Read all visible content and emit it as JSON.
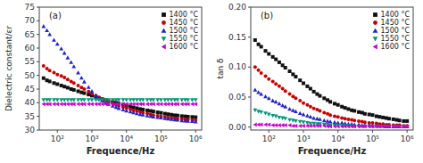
{
  "chart_data": [
    {
      "type": "scatter",
      "xlabel": "Frequence/Hz",
      "ylabel": "Dielectric constant/εr",
      "annotations": [
        "(a)"
      ],
      "log": "x",
      "grid": false,
      "legend": "upper right",
      "xlim": [
        30,
        1500000
      ],
      "xticks": [
        {
          "value": 100,
          "label": "10²"
        },
        {
          "value": 1000,
          "label": "10³"
        },
        {
          "value": 10000,
          "label": "10⁴"
        },
        {
          "value": 100000,
          "label": "10⁵"
        },
        {
          "value": 1000000,
          "label": "10⁶"
        }
      ],
      "ylim": [
        30,
        75
      ],
      "yticks": [
        30,
        35,
        40,
        45,
        50,
        55,
        60,
        65,
        70,
        75
      ],
      "x": [
        40,
        50,
        60,
        80,
        100,
        130,
        160,
        200,
        250,
        300,
        400,
        500,
        600,
        800,
        1000,
        1300,
        1600,
        2000,
        2500,
        3000,
        4000,
        5000,
        6000,
        8000,
        10000,
        13000,
        16000,
        20000,
        25000,
        30000,
        40000,
        50000,
        60000,
        80000,
        100000,
        130000,
        160000,
        200000,
        250000,
        300000,
        400000,
        500000,
        600000,
        800000,
        1000000
      ],
      "series": [
        {
          "name": "1400 °C",
          "color": "#111111",
          "marker": "square",
          "values": [
            49.0,
            48.2,
            47.8,
            47.2,
            46.8,
            46.3,
            45.9,
            45.5,
            45.0,
            44.7,
            44.2,
            43.8,
            43.5,
            43.0,
            42.6,
            42.1,
            41.7,
            41.3,
            41.0,
            40.7,
            40.3,
            40.0,
            39.7,
            39.3,
            39.0,
            38.6,
            38.3,
            38.0,
            37.7,
            37.5,
            37.2,
            37.0,
            36.8,
            36.5,
            36.3,
            36.0,
            35.8,
            35.6,
            35.4,
            35.3,
            35.1,
            35.0,
            34.9,
            34.8,
            34.7
          ]
        },
        {
          "name": "1450 °C",
          "color": "#cc0000",
          "marker": "circle",
          "values": [
            53.5,
            52.5,
            51.8,
            51.0,
            50.3,
            49.8,
            49.2,
            48.5,
            47.8,
            47.2,
            46.3,
            45.6,
            45.0,
            44.1,
            43.4,
            42.6,
            42.0,
            41.4,
            40.8,
            40.4,
            39.8,
            39.3,
            38.9,
            38.4,
            38.0,
            37.6,
            37.2,
            36.9,
            36.6,
            36.3,
            36.0,
            35.7,
            35.5,
            35.2,
            35.0,
            34.8,
            34.6,
            34.4,
            34.3,
            34.1,
            34.0,
            33.9,
            33.8,
            33.7,
            33.6
          ]
        },
        {
          "name": "1500 °C",
          "color": "#2222cc",
          "marker": "triangle-up",
          "values": [
            68.0,
            66.5,
            65.0,
            63.0,
            61.5,
            59.8,
            58.2,
            56.5,
            54.8,
            53.3,
            51.0,
            49.1,
            47.7,
            45.7,
            44.2,
            42.6,
            41.6,
            40.7,
            40.0,
            39.5,
            38.9,
            38.4,
            38.0,
            37.5,
            37.1,
            36.7,
            36.4,
            36.1,
            35.8,
            35.6,
            35.3,
            35.1,
            34.9,
            34.7,
            34.5,
            34.3,
            34.1,
            34.0,
            33.8,
            33.7,
            33.5,
            33.4,
            33.3,
            33.2,
            33.1
          ]
        },
        {
          "name": "1550 °C",
          "color": "#009977",
          "marker": "triangle-down",
          "values": [
            41.0,
            41.0,
            41.0,
            41.0,
            41.0,
            41.0,
            41.0,
            41.0,
            41.0,
            41.0,
            41.0,
            41.0,
            41.0,
            41.0,
            41.0,
            41.0,
            41.0,
            41.0,
            41.0,
            41.0,
            41.0,
            41.0,
            41.0,
            41.0,
            41.0,
            41.0,
            41.0,
            41.0,
            41.0,
            41.0,
            41.0,
            41.0,
            41.0,
            41.0,
            41.0,
            41.0,
            41.0,
            41.0,
            41.0,
            41.0,
            41.0,
            41.0,
            41.0,
            41.0,
            41.0
          ]
        },
        {
          "name": "1600 °C",
          "color": "#cc00cc",
          "marker": "triangle-left",
          "values": [
            39.5,
            39.5,
            39.5,
            39.5,
            39.5,
            39.5,
            39.5,
            39.5,
            39.5,
            39.5,
            39.5,
            39.5,
            39.5,
            39.5,
            39.5,
            39.5,
            39.5,
            39.5,
            39.5,
            39.5,
            39.5,
            39.5,
            39.5,
            39.5,
            39.5,
            39.5,
            39.5,
            39.5,
            39.5,
            39.5,
            39.5,
            39.5,
            39.5,
            39.5,
            39.5,
            39.5,
            39.5,
            39.5,
            39.5,
            39.5,
            39.5,
            39.5,
            39.5,
            39.5,
            39.5
          ]
        }
      ]
    },
    {
      "type": "scatter",
      "xlabel": "Frequence/Hz",
      "ylabel": "tan δ",
      "annotations": [
        "(b)"
      ],
      "log": "x",
      "grid": false,
      "legend": "upper right",
      "xlim": [
        30,
        1500000
      ],
      "xticks": [
        {
          "value": 100,
          "label": "10²"
        },
        {
          "value": 1000,
          "label": "10³"
        },
        {
          "value": 10000,
          "label": "10⁴"
        },
        {
          "value": 100000,
          "label": "10⁵"
        },
        {
          "value": 1000000,
          "label": "10⁶"
        }
      ],
      "ylim": [
        -0.005,
        0.2
      ],
      "yticks": [
        {
          "value": 0,
          "label": "0.00"
        },
        0.05,
        {
          "value": 0.1,
          "label": "0.10"
        },
        0.15,
        {
          "value": 0.2,
          "label": "0.20"
        }
      ],
      "x": [
        40,
        50,
        60,
        80,
        100,
        130,
        160,
        200,
        250,
        300,
        400,
        500,
        600,
        800,
        1000,
        1300,
        1600,
        2000,
        2500,
        3000,
        4000,
        5000,
        6000,
        8000,
        10000,
        13000,
        16000,
        20000,
        25000,
        30000,
        40000,
        50000,
        60000,
        80000,
        100000,
        130000,
        160000,
        200000,
        250000,
        300000,
        400000,
        500000,
        600000,
        800000,
        1000000
      ],
      "series": [
        {
          "name": "1400 °C",
          "color": "#111111",
          "marker": "square",
          "values": [
            0.145,
            0.138,
            0.134,
            0.127,
            0.122,
            0.117,
            0.113,
            0.108,
            0.103,
            0.099,
            0.093,
            0.088,
            0.084,
            0.078,
            0.073,
            0.068,
            0.064,
            0.059,
            0.055,
            0.052,
            0.048,
            0.045,
            0.042,
            0.039,
            0.037,
            0.034,
            0.032,
            0.03,
            0.028,
            0.027,
            0.025,
            0.024,
            0.022,
            0.021,
            0.02,
            0.018,
            0.017,
            0.016,
            0.015,
            0.014,
            0.013,
            0.012,
            0.011,
            0.01,
            0.01
          ]
        },
        {
          "name": "1450 °C",
          "color": "#cc0000",
          "marker": "circle",
          "values": [
            0.1,
            0.095,
            0.09,
            0.085,
            0.08,
            0.076,
            0.072,
            0.068,
            0.064,
            0.06,
            0.055,
            0.051,
            0.048,
            0.044,
            0.04,
            0.037,
            0.034,
            0.031,
            0.029,
            0.027,
            0.024,
            0.022,
            0.02,
            0.018,
            0.017,
            0.015,
            0.014,
            0.013,
            0.012,
            0.011,
            0.01,
            0.009,
            0.008,
            0.007,
            0.007,
            0.006,
            0.005,
            0.005,
            0.004,
            0.004,
            0.003,
            0.003,
            0.003,
            0.002,
            0.002
          ]
        },
        {
          "name": "1500 °C",
          "color": "#2222cc",
          "marker": "triangle-up",
          "values": [
            0.062,
            0.058,
            0.055,
            0.051,
            0.048,
            0.044,
            0.042,
            0.039,
            0.036,
            0.034,
            0.03,
            0.028,
            0.026,
            0.023,
            0.021,
            0.019,
            0.017,
            0.015,
            0.014,
            0.013,
            0.011,
            0.01,
            0.009,
            0.008,
            0.007,
            0.007,
            0.006,
            0.005,
            0.005,
            0.004,
            0.004,
            0.003,
            0.003,
            0.003,
            0.002,
            0.002,
            0.002,
            0.002,
            0.001,
            0.001,
            0.001,
            0.001,
            0.001,
            0.001,
            0.001
          ]
        },
        {
          "name": "1550 °C",
          "color": "#009977",
          "marker": "triangle-down",
          "values": [
            0.028,
            0.026,
            0.025,
            0.023,
            0.021,
            0.019,
            0.018,
            0.016,
            0.015,
            0.014,
            0.012,
            0.011,
            0.01,
            0.009,
            0.008,
            0.007,
            0.006,
            0.006,
            0.005,
            0.005,
            0.004,
            0.004,
            0.003,
            0.003,
            0.003,
            0.002,
            0.002,
            0.002,
            0.002,
            0.001,
            0.001,
            0.001,
            0.001,
            0.001,
            0.001,
            0.001,
            0.001,
            0.001,
            0.001,
            0.001,
            0.001,
            0.001,
            0.001,
            0.001,
            0.001
          ]
        },
        {
          "name": "1600 °C",
          "color": "#cc00cc",
          "marker": "triangle-left",
          "values": [
            0.004,
            0.004,
            0.004,
            0.004,
            0.004,
            0.003,
            0.003,
            0.003,
            0.003,
            0.003,
            0.003,
            0.002,
            0.002,
            0.002,
            0.002,
            0.002,
            0.002,
            0.002,
            0.002,
            0.002,
            0.002,
            0.001,
            0.001,
            0.001,
            0.001,
            0.001,
            0.001,
            0.001,
            0.001,
            0.001,
            0.001,
            0.001,
            0.001,
            0.001,
            0.001,
            0.001,
            0.001,
            0.001,
            0.001,
            0.001,
            0.001,
            0.001,
            0.001,
            0.001,
            0.001
          ]
        }
      ]
    }
  ]
}
